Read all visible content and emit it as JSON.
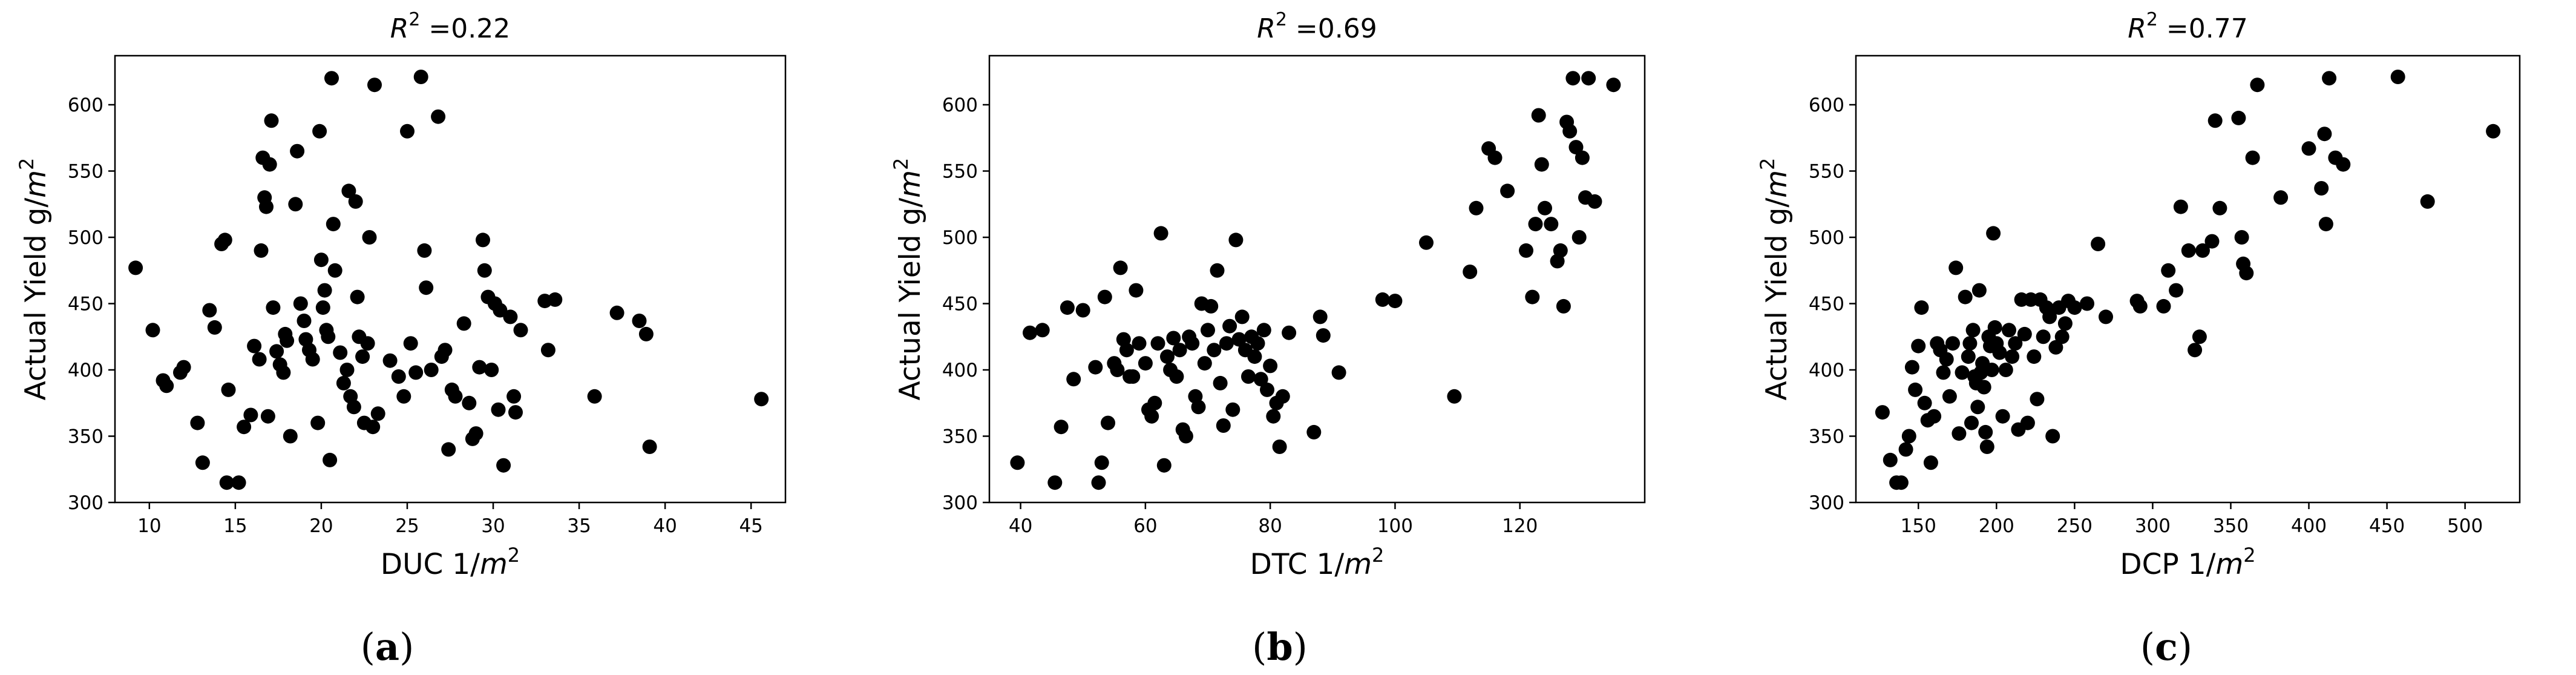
{
  "chart_data": [
    {
      "type": "scatter",
      "panel_label": "(a)",
      "panel_letter": "a",
      "title_prefix": "R",
      "title_sup": "2",
      "title_value": " =0.22",
      "xlabel": "DUC 1/",
      "xlabel_unit": "m",
      "xlabel_sup": "2",
      "ylabel": "Actual Yield g/",
      "ylabel_unit": "m",
      "ylabel_sup": "2",
      "xlim": [
        8,
        47
      ],
      "ylim": [
        300,
        637
      ],
      "xticks": [
        10,
        15,
        20,
        25,
        30,
        35,
        40,
        45
      ],
      "yticks": [
        300,
        350,
        400,
        450,
        500,
        550,
        600
      ],
      "marker_color": "#000000",
      "points": [
        [
          9.2,
          477
        ],
        [
          10.2,
          430
        ],
        [
          10.8,
          392
        ],
        [
          11,
          388
        ],
        [
          11.8,
          398
        ],
        [
          12,
          402
        ],
        [
          12.8,
          360
        ],
        [
          13.1,
          330
        ],
        [
          13.5,
          445
        ],
        [
          13.8,
          432
        ],
        [
          14.2,
          495
        ],
        [
          14.4,
          498
        ],
        [
          14.5,
          315
        ],
        [
          14.6,
          385
        ],
        [
          15.2,
          315
        ],
        [
          15.5,
          357
        ],
        [
          15.9,
          366
        ],
        [
          16.1,
          418
        ],
        [
          16.4,
          408
        ],
        [
          16.5,
          490
        ],
        [
          16.6,
          560
        ],
        [
          16.7,
          530
        ],
        [
          16.8,
          523
        ],
        [
          16.9,
          365
        ],
        [
          17,
          555
        ],
        [
          17.1,
          588
        ],
        [
          17.2,
          447
        ],
        [
          17.4,
          414
        ],
        [
          17.6,
          404
        ],
        [
          17.8,
          398
        ],
        [
          17.9,
          427
        ],
        [
          18,
          422
        ],
        [
          18.2,
          350
        ],
        [
          18.5,
          525
        ],
        [
          18.6,
          565
        ],
        [
          18.8,
          450
        ],
        [
          19,
          437
        ],
        [
          19.1,
          423
        ],
        [
          19.3,
          415
        ],
        [
          19.5,
          408
        ],
        [
          19.8,
          360
        ],
        [
          19.9,
          580
        ],
        [
          20,
          483
        ],
        [
          20.1,
          447
        ],
        [
          20.2,
          460
        ],
        [
          20.3,
          430
        ],
        [
          20.4,
          425
        ],
        [
          20.5,
          332
        ],
        [
          20.6,
          620
        ],
        [
          20.7,
          510
        ],
        [
          20.8,
          475
        ],
        [
          21.1,
          413
        ],
        [
          21.3,
          390
        ],
        [
          21.5,
          400
        ],
        [
          21.6,
          535
        ],
        [
          21.7,
          380
        ],
        [
          21.9,
          372
        ],
        [
          22,
          527
        ],
        [
          22.1,
          455
        ],
        [
          22.2,
          425
        ],
        [
          22.4,
          410
        ],
        [
          22.5,
          360
        ],
        [
          22.7,
          420
        ],
        [
          22.8,
          500
        ],
        [
          23,
          357
        ],
        [
          23.1,
          615
        ],
        [
          23.3,
          367
        ],
        [
          24,
          407
        ],
        [
          24.5,
          395
        ],
        [
          24.8,
          380
        ],
        [
          25,
          580
        ],
        [
          25.2,
          420
        ],
        [
          25.5,
          398
        ],
        [
          25.8,
          621
        ],
        [
          26,
          490
        ],
        [
          26.1,
          462
        ],
        [
          26.4,
          400
        ],
        [
          26.8,
          591
        ],
        [
          27,
          410
        ],
        [
          27.2,
          415
        ],
        [
          27.4,
          340
        ],
        [
          27.6,
          385
        ],
        [
          27.8,
          380
        ],
        [
          28.3,
          435
        ],
        [
          28.6,
          375
        ],
        [
          28.8,
          348
        ],
        [
          29,
          352
        ],
        [
          29.2,
          402
        ],
        [
          29.4,
          498
        ],
        [
          29.5,
          475
        ],
        [
          29.7,
          455
        ],
        [
          29.9,
          400
        ],
        [
          30.1,
          450
        ],
        [
          30.3,
          370
        ],
        [
          30.4,
          445
        ],
        [
          30.6,
          328
        ],
        [
          31,
          440
        ],
        [
          31.2,
          380
        ],
        [
          31.3,
          368
        ],
        [
          31.6,
          430
        ],
        [
          33,
          452
        ],
        [
          33.2,
          415
        ],
        [
          33.6,
          453
        ],
        [
          35.9,
          380
        ],
        [
          37.2,
          443
        ],
        [
          38.5,
          437
        ],
        [
          38.9,
          427
        ],
        [
          39.1,
          342
        ],
        [
          45.6,
          378
        ]
      ]
    },
    {
      "type": "scatter",
      "panel_label": "(b)",
      "panel_letter": "b",
      "title_prefix": "R",
      "title_sup": "2",
      "title_value": " =0.69",
      "xlabel": "DTC 1/",
      "xlabel_unit": "m",
      "xlabel_sup": "2",
      "ylabel": "Actual Yield g/",
      "ylabel_unit": "m",
      "ylabel_sup": "2",
      "xlim": [
        35,
        140
      ],
      "ylim": [
        300,
        637
      ],
      "xticks": [
        40,
        60,
        80,
        100,
        120
      ],
      "yticks": [
        300,
        350,
        400,
        450,
        500,
        550,
        600
      ],
      "marker_color": "#000000",
      "points": [
        [
          39.5,
          330
        ],
        [
          41.5,
          428
        ],
        [
          43.5,
          430
        ],
        [
          45.5,
          315
        ],
        [
          46.5,
          357
        ],
        [
          47.5,
          447
        ],
        [
          48.5,
          393
        ],
        [
          50,
          445
        ],
        [
          52,
          402
        ],
        [
          52.5,
          315
        ],
        [
          53,
          330
        ],
        [
          53.5,
          455
        ],
        [
          54,
          360
        ],
        [
          55,
          405
        ],
        [
          55.5,
          400
        ],
        [
          56,
          477
        ],
        [
          56.5,
          423
        ],
        [
          57,
          415
        ],
        [
          57.5,
          395
        ],
        [
          58,
          395
        ],
        [
          58.5,
          460
        ],
        [
          59,
          420
        ],
        [
          60,
          405
        ],
        [
          60.5,
          370
        ],
        [
          61,
          365
        ],
        [
          61.5,
          375
        ],
        [
          62,
          420
        ],
        [
          62.5,
          503
        ],
        [
          63,
          328
        ],
        [
          63.5,
          410
        ],
        [
          64,
          400
        ],
        [
          64.5,
          424
        ],
        [
          65,
          395
        ],
        [
          65.5,
          415
        ],
        [
          66,
          355
        ],
        [
          66.5,
          350
        ],
        [
          67,
          425
        ],
        [
          67.5,
          420
        ],
        [
          68,
          380
        ],
        [
          68.5,
          372
        ],
        [
          69,
          450
        ],
        [
          69.5,
          405
        ],
        [
          70,
          430
        ],
        [
          70.5,
          448
        ],
        [
          71,
          415
        ],
        [
          71.5,
          475
        ],
        [
          72,
          390
        ],
        [
          72.5,
          358
        ],
        [
          73,
          420
        ],
        [
          73.5,
          433
        ],
        [
          74,
          370
        ],
        [
          74.5,
          498
        ],
        [
          75,
          423
        ],
        [
          75.5,
          440
        ],
        [
          76,
          415
        ],
        [
          76.5,
          395
        ],
        [
          77,
          425
        ],
        [
          77.5,
          410
        ],
        [
          78,
          420
        ],
        [
          78.5,
          393
        ],
        [
          79,
          430
        ],
        [
          79.5,
          385
        ],
        [
          80,
          403
        ],
        [
          80.5,
          365
        ],
        [
          81,
          375
        ],
        [
          81.5,
          342
        ],
        [
          82,
          380
        ],
        [
          83,
          428
        ],
        [
          87,
          353
        ],
        [
          88,
          440
        ],
        [
          88.5,
          426
        ],
        [
          91,
          398
        ],
        [
          98,
          453
        ],
        [
          100,
          452
        ],
        [
          105,
          496
        ],
        [
          109.5,
          380
        ],
        [
          112,
          474
        ],
        [
          113,
          522
        ],
        [
          115,
          567
        ],
        [
          116,
          560
        ],
        [
          118,
          535
        ],
        [
          121,
          490
        ],
        [
          122,
          455
        ],
        [
          122.5,
          510
        ],
        [
          123,
          592
        ],
        [
          123.5,
          555
        ],
        [
          124,
          522
        ],
        [
          125,
          510
        ],
        [
          126,
          482
        ],
        [
          126.5,
          490
        ],
        [
          127,
          448
        ],
        [
          127.5,
          587
        ],
        [
          128,
          580
        ],
        [
          128.5,
          620
        ],
        [
          129,
          568
        ],
        [
          129.5,
          500
        ],
        [
          130,
          560
        ],
        [
          130.5,
          530
        ],
        [
          131,
          620
        ],
        [
          132,
          527
        ],
        [
          135,
          615
        ]
      ]
    },
    {
      "type": "scatter",
      "panel_label": "(c)",
      "panel_letter": "c",
      "title_prefix": "R",
      "title_sup": "2",
      "title_value": " =0.77",
      "xlabel": "DCP 1/",
      "xlabel_unit": "m",
      "xlabel_sup": "2",
      "ylabel": "Actual Yield g/",
      "ylabel_unit": "m",
      "ylabel_sup": "2",
      "xlim": [
        110,
        535
      ],
      "ylim": [
        300,
        637
      ],
      "xticks": [
        150,
        200,
        250,
        300,
        350,
        400,
        450,
        500
      ],
      "yticks": [
        300,
        350,
        400,
        450,
        500,
        550,
        600
      ],
      "marker_color": "#000000",
      "points": [
        [
          127,
          368
        ],
        [
          132,
          332
        ],
        [
          136,
          315
        ],
        [
          139,
          315
        ],
        [
          142,
          340
        ],
        [
          144,
          350
        ],
        [
          146,
          402
        ],
        [
          148,
          385
        ],
        [
          150,
          418
        ],
        [
          152,
          447
        ],
        [
          154,
          375
        ],
        [
          156,
          362
        ],
        [
          158,
          330
        ],
        [
          160,
          365
        ],
        [
          162,
          420
        ],
        [
          164,
          415
        ],
        [
          166,
          398
        ],
        [
          168,
          408
        ],
        [
          170,
          380
        ],
        [
          172,
          420
        ],
        [
          174,
          477
        ],
        [
          176,
          352
        ],
        [
          178,
          398
        ],
        [
          180,
          455
        ],
        [
          182,
          410
        ],
        [
          183,
          420
        ],
        [
          184,
          360
        ],
        [
          185,
          430
        ],
        [
          186,
          395
        ],
        [
          187,
          390
        ],
        [
          188,
          372
        ],
        [
          189,
          460
        ],
        [
          190,
          398
        ],
        [
          191,
          405
        ],
        [
          192,
          387
        ],
        [
          193,
          353
        ],
        [
          194,
          342
        ],
        [
          195,
          425
        ],
        [
          196,
          418
        ],
        [
          197,
          400
        ],
        [
          198,
          503
        ],
        [
          199,
          432
        ],
        [
          200,
          420
        ],
        [
          202,
          413
        ],
        [
          204,
          365
        ],
        [
          206,
          400
        ],
        [
          208,
          430
        ],
        [
          210,
          410
        ],
        [
          212,
          420
        ],
        [
          214,
          355
        ],
        [
          216,
          453
        ],
        [
          218,
          427
        ],
        [
          220,
          360
        ],
        [
          222,
          453
        ],
        [
          224,
          410
        ],
        [
          226,
          378
        ],
        [
          228,
          453
        ],
        [
          230,
          425
        ],
        [
          232,
          447
        ],
        [
          234,
          440
        ],
        [
          236,
          350
        ],
        [
          238,
          417
        ],
        [
          240,
          447
        ],
        [
          242,
          425
        ],
        [
          244,
          435
        ],
        [
          246,
          452
        ],
        [
          250,
          447
        ],
        [
          258,
          450
        ],
        [
          265,
          495
        ],
        [
          270,
          440
        ],
        [
          290,
          452
        ],
        [
          292,
          448
        ],
        [
          307,
          448
        ],
        [
          310,
          475
        ],
        [
          315,
          460
        ],
        [
          318,
          523
        ],
        [
          323,
          490
        ],
        [
          327,
          415
        ],
        [
          330,
          425
        ],
        [
          332,
          490
        ],
        [
          338,
          497
        ],
        [
          340,
          588
        ],
        [
          343,
          522
        ],
        [
          355,
          590
        ],
        [
          357,
          500
        ],
        [
          358,
          480
        ],
        [
          360,
          473
        ],
        [
          364,
          560
        ],
        [
          367,
          615
        ],
        [
          382,
          530
        ],
        [
          400,
          567
        ],
        [
          408,
          537
        ],
        [
          410,
          578
        ],
        [
          411,
          510
        ],
        [
          413,
          620
        ],
        [
          417,
          560
        ],
        [
          422,
          555
        ],
        [
          457,
          621
        ],
        [
          476,
          527
        ],
        [
          518,
          580
        ]
      ]
    }
  ]
}
